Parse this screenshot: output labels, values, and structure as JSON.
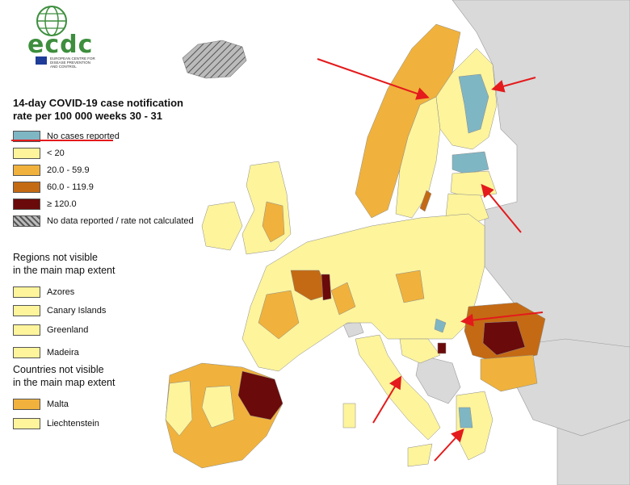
{
  "logo": {
    "text": "ecdc",
    "subtitle": "EUROPEAN CENTRE FOR\nDISEASE PREVENTION\nAND CONTROL"
  },
  "title": {
    "line1": "14-day COVID-19 case notification",
    "line2": "rate per 100 000 weeks 30 - 31"
  },
  "legend": [
    {
      "label": "No cases reported",
      "color": "#7fb6c4"
    },
    {
      "label": "< 20",
      "color": "#fdf49c"
    },
    {
      "label": "20.0 - 59.9",
      "color": "#f0b23c"
    },
    {
      "label": "60.0 - 119.9",
      "color": "#c46a14"
    },
    {
      "label": "≥ 120.0",
      "color": "#6b0a0a"
    },
    {
      "label": "No data reported / rate not calculated",
      "color": "#999999",
      "pattern": "hatched"
    }
  ],
  "regions_section": {
    "title_line1": "Regions not visible",
    "title_line2": "in the main map extent",
    "items": [
      {
        "label": "Azores",
        "color": "#fdf49c"
      },
      {
        "label": "Canary Islands",
        "color": "#fdf49c"
      },
      {
        "label": "Greenland",
        "color": "#fdf49c"
      },
      {
        "label": "Madeira",
        "color": "#fdf49c"
      }
    ]
  },
  "countries_section": {
    "title_line1": "Countries not visible",
    "title_line2": "in the main map extent",
    "items": [
      {
        "label": "Malta",
        "color": "#f0b23c"
      },
      {
        "label": "Liechtenstein",
        "color": "#fdf49c"
      }
    ]
  },
  "colors": {
    "sea": "#ffffff",
    "non_eu_land": "#d9d9d9",
    "annotation_arrow": "#e41a1c",
    "border": "#8a8a8a"
  }
}
